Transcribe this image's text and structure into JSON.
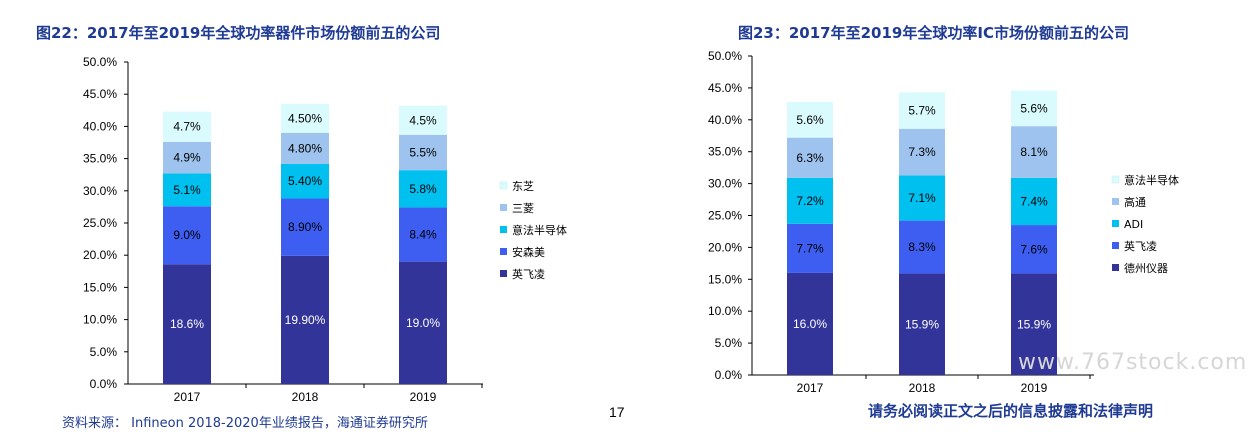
{
  "left_title": "图22：2017年至2019年全球功率器件市场份额前五的公司",
  "right_title": "图23：2017年至2019年全球功率IC市场份额前五的公司",
  "footer": {
    "source": "资料来源： Infineon 2018-2020年业绩报告，海通证券研究所",
    "page": "17",
    "disclaimer": "请务必阅读正文之后的信息披露和法律声明",
    "watermark": "www.767stock.com"
  },
  "chart_data": [
    {
      "type": "bar",
      "stacked": true,
      "categories": [
        "2017",
        "2018",
        "2019"
      ],
      "ylim": [
        0,
        50
      ],
      "ytick_step": 5,
      "ytick_suffix": ".0%",
      "grid": false,
      "legend_position": "right",
      "series": [
        {
          "name": "英飞凌",
          "values": [
            18.6,
            19.9,
            19.0
          ],
          "labels": [
            "18.6%",
            "19.90%",
            "19.0%"
          ],
          "color": "#33349a",
          "label_color": "#ffffff"
        },
        {
          "name": "安森美",
          "values": [
            9.0,
            8.9,
            8.4
          ],
          "labels": [
            "9.0%",
            "8.90%",
            "8.4%"
          ],
          "color": "#3d5ef0",
          "label_color": "#000000"
        },
        {
          "name": "意法半导体",
          "values": [
            5.1,
            5.4,
            5.8
          ],
          "labels": [
            "5.1%",
            "5.40%",
            "5.8%"
          ],
          "color": "#00c0f0",
          "label_color": "#000000"
        },
        {
          "name": "三菱",
          "values": [
            4.9,
            4.8,
            5.5
          ],
          "labels": [
            "4.9%",
            "4.80%",
            "5.5%"
          ],
          "color": "#9dc3ee",
          "label_color": "#000000"
        },
        {
          "name": "东芝",
          "values": [
            4.7,
            4.5,
            4.5
          ],
          "labels": [
            "4.7%",
            "4.50%",
            "4.5%"
          ],
          "color": "#dafbfd",
          "label_color": "#000000"
        }
      ]
    },
    {
      "type": "bar",
      "stacked": true,
      "categories": [
        "2017",
        "2018",
        "2019"
      ],
      "ylim": [
        0,
        50
      ],
      "ytick_step": 5,
      "ytick_suffix": ".0%",
      "grid": false,
      "legend_position": "right",
      "series": [
        {
          "name": "德州仪器",
          "values": [
            16.0,
            15.9,
            15.9
          ],
          "labels": [
            "16.0%",
            "15.9%",
            "15.9%"
          ],
          "color": "#33349a",
          "label_color": "#ffffff"
        },
        {
          "name": "英飞凌",
          "values": [
            7.7,
            8.3,
            7.6
          ],
          "labels": [
            "7.7%",
            "8.3%",
            "7.6%"
          ],
          "color": "#3d5ef0",
          "label_color": "#000000"
        },
        {
          "name": "ADI",
          "values": [
            7.2,
            7.1,
            7.4
          ],
          "labels": [
            "7.2%",
            "7.1%",
            "7.4%"
          ],
          "color": "#00c0f0",
          "label_color": "#000000"
        },
        {
          "name": "高通",
          "values": [
            6.3,
            7.3,
            8.1
          ],
          "labels": [
            "6.3%",
            "7.3%",
            "8.1%"
          ],
          "color": "#9dc3ee",
          "label_color": "#000000"
        },
        {
          "name": "意法半导体",
          "values": [
            5.6,
            5.7,
            5.6
          ],
          "labels": [
            "5.6%",
            "5.7%",
            "5.6%"
          ],
          "color": "#dafbfd",
          "label_color": "#000000"
        }
      ]
    }
  ]
}
